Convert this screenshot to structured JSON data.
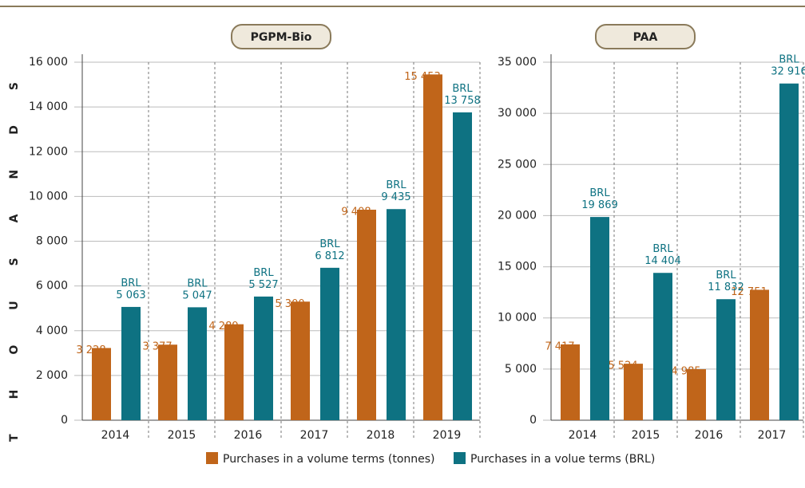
{
  "chart_data": [
    {
      "type": "bar",
      "title": "PGPM-Bio",
      "ylabel": "THOUSANDS",
      "categories": [
        "2014",
        "2015",
        "2016",
        "2017",
        "2018",
        "2019"
      ],
      "series": [
        {
          "name": "Purchases in a volume terms (tonnes)",
          "color": "#c0651a",
          "values": [
            3228,
            3377,
            4289,
            5300,
            9408,
            15453
          ],
          "value_labels": [
            "3 228",
            "3 377",
            "4 289",
            "5 300",
            "9 408",
            "15 453"
          ]
        },
        {
          "name": "Purchases in a volue terms (BRL)",
          "color": "#0e7282",
          "values": [
            5063,
            5047,
            5527,
            6812,
            9435,
            13758
          ],
          "value_labels": [
            "BRL 5 063",
            "BRL 5 047",
            "BRL 5 527",
            "BRL 6 812",
            "BRL 9 435",
            "BRL 13 758"
          ]
        }
      ],
      "ylim": [
        0,
        16000
      ],
      "yticks": [
        0,
        {
          "value": 2000,
          "label": "2 000"
        },
        {
          "value": 4000,
          "label": "4 000"
        },
        {
          "value": 6000,
          "label": "6 000"
        },
        {
          "value": 8000,
          "label": "8 000"
        },
        {
          "value": 10000,
          "label": "10 000"
        },
        {
          "value": 12000,
          "label": "12 000"
        },
        {
          "value": 14000,
          "label": "14 000"
        },
        {
          "value": 16000,
          "label": "16 000"
        }
      ],
      "grid": true
    },
    {
      "type": "bar",
      "title": "PAA",
      "categories": [
        "2014",
        "2015",
        "2016",
        "2017"
      ],
      "series": [
        {
          "color": "#c0651a",
          "values": [
            7417,
            5524,
            4985,
            12751
          ],
          "value_labels": [
            "7 417",
            "5 524",
            "4 985",
            "12 751"
          ]
        },
        {
          "color": "#0e7282",
          "values": [
            19869,
            14404,
            11832,
            32916
          ],
          "value_labels": [
            "BRL 19 869",
            "BRL 14 404",
            "BRL 11 832",
            "BRL 32 916"
          ]
        }
      ],
      "ylim": [
        0,
        35000
      ],
      "yticks": [
        0,
        {
          "value": 5000,
          "label": "5 000"
        },
        {
          "value": 10000,
          "label": "10 000"
        },
        {
          "value": 15000,
          "label": "15 000"
        },
        {
          "value": 20000,
          "label": "20 000"
        },
        {
          "value": 25000,
          "label": "25 000"
        },
        {
          "value": 30000,
          "label": "30 000"
        },
        {
          "value": 35000,
          "label": "35 000"
        }
      ],
      "grid": true
    }
  ]
}
